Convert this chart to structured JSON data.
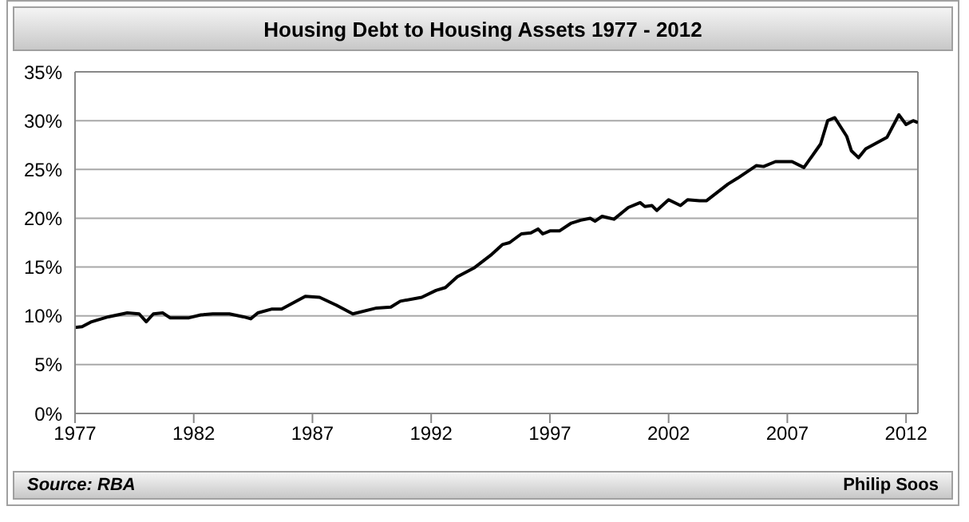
{
  "chart_data": {
    "type": "line",
    "title": "Housing Debt to Housing Assets 1977 - 2012",
    "x": [
      1977.0,
      1977.3,
      1977.7,
      1978.4,
      1979.2,
      1979.7,
      1980.0,
      1980.3,
      1980.7,
      1981.0,
      1981.8,
      1982.3,
      1982.8,
      1983.5,
      1984.1,
      1984.4,
      1984.7,
      1985.3,
      1985.7,
      1986.7,
      1987.3,
      1988.0,
      1988.7,
      1989.7,
      1990.3,
      1990.7,
      1991.6,
      1992.2,
      1992.6,
      1993.1,
      1993.8,
      1994.5,
      1995.0,
      1995.3,
      1995.8,
      1996.2,
      1996.5,
      1996.7,
      1997.0,
      1997.4,
      1997.9,
      1998.3,
      1998.7,
      1998.9,
      1999.2,
      1999.7,
      2000.3,
      2000.8,
      2001.0,
      2001.3,
      2001.5,
      2002.0,
      2002.5,
      2002.8,
      2003.3,
      2003.6,
      2004.5,
      2004.9,
      2005.7,
      2006.0,
      2006.5,
      2007.2,
      2007.7,
      2008.4,
      2008.7,
      2009.0,
      2009.5,
      2009.7,
      2010.0,
      2010.3,
      2011.2,
      2011.7,
      2012.0,
      2012.3,
      2012.5
    ],
    "series": [
      {
        "color": "#000000",
        "values": [
          8.8,
          8.9,
          9.4,
          9.9,
          10.3,
          10.2,
          9.4,
          10.2,
          10.3,
          9.8,
          9.8,
          10.1,
          10.2,
          10.2,
          9.9,
          9.7,
          10.3,
          10.7,
          10.7,
          12.0,
          11.9,
          11.1,
          10.2,
          10.8,
          10.9,
          11.5,
          11.9,
          12.6,
          12.9,
          14.0,
          14.9,
          16.2,
          17.3,
          17.5,
          18.4,
          18.5,
          18.9,
          18.4,
          18.7,
          18.7,
          19.5,
          19.8,
          20.0,
          19.7,
          20.2,
          19.9,
          21.1,
          21.6,
          21.2,
          21.3,
          20.8,
          21.9,
          21.3,
          21.9,
          21.8,
          21.8,
          23.5,
          24.1,
          25.4,
          25.3,
          25.8,
          25.8,
          25.2,
          27.6,
          30.0,
          30.3,
          28.4,
          26.9,
          26.2,
          27.1,
          28.3,
          30.6,
          29.6,
          30.0,
          29.8
        ]
      }
    ],
    "xlim": [
      1977,
      2012.5
    ],
    "xticks": [
      1977,
      1982,
      1987,
      1992,
      1997,
      2002,
      2007,
      2012
    ],
    "ylim": [
      0,
      35
    ],
    "yticks": [
      {
        "value": 0,
        "label": "0%"
      },
      {
        "value": 5,
        "label": "5%"
      },
      {
        "value": 10,
        "label": "10%"
      },
      {
        "value": 15,
        "label": "15%"
      },
      {
        "value": 20,
        "label": "20%"
      },
      {
        "value": 25,
        "label": "25%"
      },
      {
        "value": 30,
        "label": "30%"
      },
      {
        "value": 35,
        "label": "35%"
      }
    ],
    "grid": "y",
    "marker": "none",
    "line_style": "solid",
    "annotations": [
      "Source: RBA",
      "Philip Soos"
    ]
  }
}
